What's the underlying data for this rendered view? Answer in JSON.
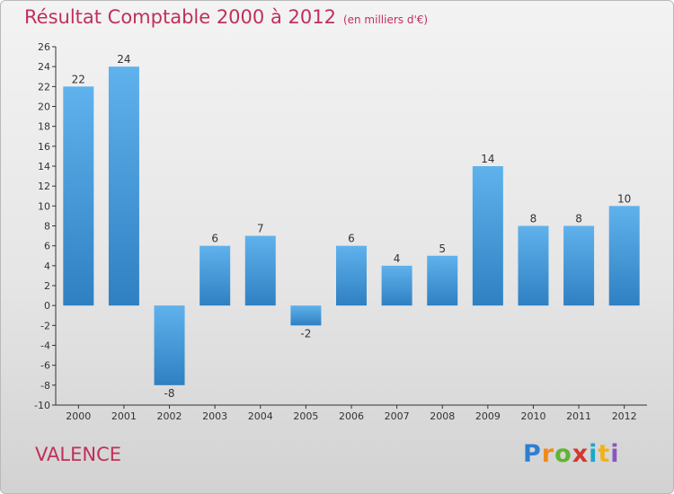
{
  "chart_data": {
    "type": "bar",
    "title": "Résultat Comptable 2000 à 2012",
    "subtitle": "(en milliers d'€)",
    "categories": [
      "2000",
      "2001",
      "2002",
      "2003",
      "2004",
      "2005",
      "2006",
      "2007",
      "2008",
      "2009",
      "2010",
      "2011",
      "2012"
    ],
    "values": [
      22,
      24,
      -8,
      6,
      7,
      -2,
      6,
      4,
      5,
      14,
      8,
      8,
      10
    ],
    "ylim": [
      -10,
      26
    ],
    "yticks": [
      -10,
      -8,
      -6,
      -4,
      -2,
      0,
      2,
      4,
      6,
      8,
      10,
      12,
      14,
      16,
      18,
      20,
      22,
      24,
      26
    ],
    "xlabel": "",
    "ylabel": "",
    "grid": false,
    "colors": {
      "bar_top": "#5fb2ec",
      "bar_bottom": "#2f80c2",
      "title": "#c0305a",
      "axis": "#333333"
    }
  },
  "commune": "VALENCE",
  "brand": {
    "letters": [
      "P",
      "r",
      "o",
      "x",
      "i",
      "t",
      "i"
    ],
    "colors": [
      "#2f7fd0",
      "#f08a1c",
      "#5fb52f",
      "#d2382e",
      "#1ea7c9",
      "#f0b21c",
      "#8a55c2"
    ]
  }
}
